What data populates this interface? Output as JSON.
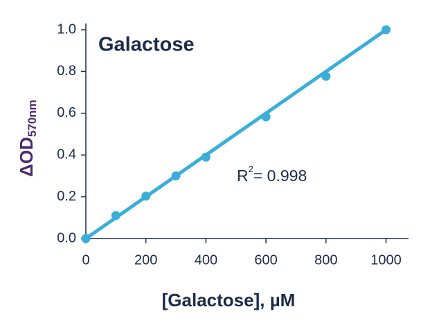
{
  "chart_data": {
    "type": "scatter",
    "title": "Galactose",
    "x_label": "[Galactose], µM",
    "y_label": {
      "text": "ΔOD",
      "sub": "570nm"
    },
    "annotation": {
      "text": "R",
      "sup": "2",
      "rest": "= 0.998"
    },
    "color": "#3aaed8",
    "x": [
      0,
      100,
      200,
      300,
      400,
      600,
      800,
      1000
    ],
    "values": [
      0,
      0.11,
      0.203,
      0.3,
      0.39,
      0.583,
      0.777,
      1.0
    ],
    "fit": {
      "x": [
        0,
        1000
      ],
      "values": [
        0,
        1.0
      ]
    },
    "xlim": [
      0,
      1075
    ],
    "ylim": [
      0,
      1.03
    ],
    "xticks": [
      0,
      200,
      400,
      600,
      800,
      1000
    ],
    "yticks": [
      {
        "value": 0,
        "label": "0.0"
      },
      0.2,
      0.4,
      0.6,
      0.8,
      {
        "value": 1,
        "label": "1.0"
      }
    ]
  }
}
